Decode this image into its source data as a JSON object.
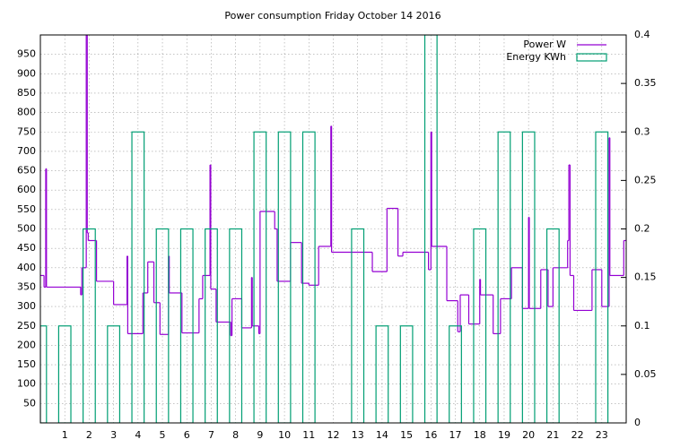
{
  "chart_data": {
    "type": "line",
    "title": "Power consumption Friday October 14 2016",
    "xlim": [
      0,
      24
    ],
    "xticks": [
      1,
      2,
      3,
      4,
      5,
      6,
      7,
      8,
      9,
      10,
      11,
      12,
      13,
      14,
      15,
      16,
      17,
      18,
      19,
      20,
      21,
      22,
      23
    ],
    "ylim": [
      0,
      1000
    ],
    "yticks": [
      50,
      100,
      150,
      200,
      250,
      300,
      350,
      400,
      450,
      500,
      550,
      600,
      650,
      700,
      750,
      800,
      850,
      900,
      950
    ],
    "y2lim": [
      0,
      0.4
    ],
    "y2ticks": [
      0,
      0.05,
      0.1,
      0.15,
      0.2,
      0.25,
      0.3,
      0.35,
      0.4
    ],
    "grid": true,
    "legend": "top right",
    "series": [
      {
        "name": "Power W",
        "color": "#9400d3",
        "style": "steps",
        "x": [
          0,
          0.15,
          0.22,
          0.25,
          1.65,
          1.7,
          1.88,
          1.92,
          1.96,
          2.3,
          3.0,
          3.55,
          3.58,
          4.2,
          4.4,
          4.65,
          4.9,
          5.25,
          5.28,
          5.8,
          6.5,
          6.65,
          6.95,
          6.98,
          7.2,
          7.8,
          7.85,
          8.25,
          8.65,
          8.68,
          8.95,
          9.0,
          9.6,
          9.7,
          10.25,
          10.7,
          11.0,
          11.4,
          11.9,
          11.93,
          13.6,
          14.2,
          14.65,
          14.85,
          15.9,
          16.0,
          16.03,
          16.65,
          17.1,
          17.2,
          17.55,
          18.0,
          18.03,
          18.55,
          18.85,
          19.3,
          19.75,
          20.0,
          20.03,
          20.5,
          20.8,
          21.0,
          21.6,
          21.65,
          21.7,
          21.85,
          22.6,
          23.0,
          23.3,
          23.33,
          23.9,
          24
        ],
        "values": [
          380,
          350,
          655,
          350,
          330,
          400,
          1000,
          490,
          470,
          365,
          305,
          430,
          230,
          335,
          415,
          310,
          228,
          430,
          335,
          232,
          320,
          380,
          665,
          345,
          260,
          225,
          320,
          245,
          375,
          250,
          230,
          545,
          500,
          365,
          465,
          360,
          355,
          455,
          765,
          440,
          390,
          553,
          430,
          440,
          395,
          750,
          455,
          315,
          235,
          330,
          255,
          370,
          330,
          230,
          320,
          400,
          295,
          530,
          295,
          395,
          300,
          400,
          470,
          665,
          380,
          290,
          395,
          300,
          735,
          380,
          470,
          470
        ]
      },
      {
        "name": "Energy KWh",
        "color": "#009e73",
        "style": "boxes",
        "axis": "y2",
        "x": [
          0,
          1,
          2,
          3,
          4,
          5,
          6,
          7,
          8,
          9,
          10,
          11,
          12,
          13,
          14,
          15,
          16,
          17,
          18,
          19,
          20,
          21,
          22,
          23
        ],
        "values": [
          0.1,
          0.1,
          0.2,
          0.1,
          0.3,
          0.2,
          0.2,
          0.2,
          0.2,
          0.3,
          0.3,
          0.3,
          0,
          0.2,
          0.1,
          0.1,
          0.4,
          0.1,
          0.2,
          0.3,
          0.3,
          0.2,
          0,
          0.3
        ]
      }
    ]
  }
}
